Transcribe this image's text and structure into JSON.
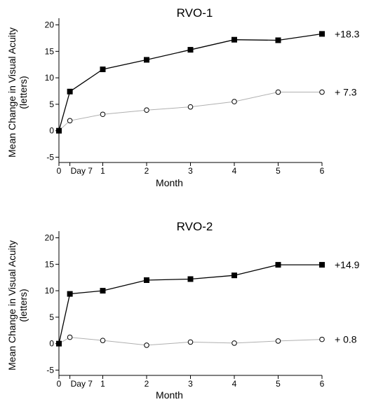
{
  "chart_data": [
    {
      "type": "line",
      "title": "RVO-1",
      "xlabel": "Month",
      "ylabel": [
        "Mean Change in Visual Acuity",
        "(letters)"
      ],
      "x_tick_labels": [
        "0",
        "Day 7",
        "1",
        "2",
        "3",
        "4",
        "5",
        "6"
      ],
      "x": [
        0,
        0.25,
        1,
        2,
        3,
        4,
        5,
        6
      ],
      "xlim": [
        0,
        6
      ],
      "ylim": [
        -6,
        21
      ],
      "y_ticks": [
        -5,
        0,
        5,
        10,
        15,
        20
      ],
      "y_tick_labels": [
        "-5",
        "0",
        "5",
        "10",
        "15",
        "20"
      ],
      "grid": false,
      "series": [
        {
          "marker": "square-filled",
          "color": "#000000",
          "values": [
            0,
            7.4,
            11.6,
            13.4,
            15.3,
            17.2,
            17.1,
            18.3
          ],
          "end_label": "+18.3"
        },
        {
          "marker": "circle-open",
          "color": "#b0b0b0",
          "values": [
            0,
            1.9,
            3.1,
            3.9,
            4.5,
            5.5,
            7.3,
            7.3
          ],
          "end_label": "+ 7.3"
        }
      ]
    },
    {
      "type": "line",
      "title": "RVO-2",
      "xlabel": "Month",
      "ylabel": [
        "Mean Change in Visual Acuity",
        "(letters)"
      ],
      "x_tick_labels": [
        "0",
        "Day 7",
        "1",
        "2",
        "3",
        "4",
        "5",
        "6"
      ],
      "x": [
        0,
        0.25,
        1,
        2,
        3,
        4,
        5,
        6
      ],
      "xlim": [
        0,
        6
      ],
      "ylim": [
        -6,
        21
      ],
      "y_ticks": [
        -5,
        0,
        5,
        10,
        15,
        20
      ],
      "y_tick_labels": [
        "-5",
        "0",
        "5",
        "10",
        "15",
        "20"
      ],
      "grid": false,
      "series": [
        {
          "marker": "square-filled",
          "color": "#000000",
          "values": [
            0,
            9.4,
            10.0,
            12.0,
            12.2,
            12.9,
            14.9,
            14.9
          ],
          "end_label": "+14.9"
        },
        {
          "marker": "circle-open",
          "color": "#b0b0b0",
          "values": [
            0,
            1.2,
            0.6,
            -0.3,
            0.3,
            0.1,
            0.5,
            0.8
          ],
          "end_label": "+ 0.8"
        }
      ]
    }
  ]
}
